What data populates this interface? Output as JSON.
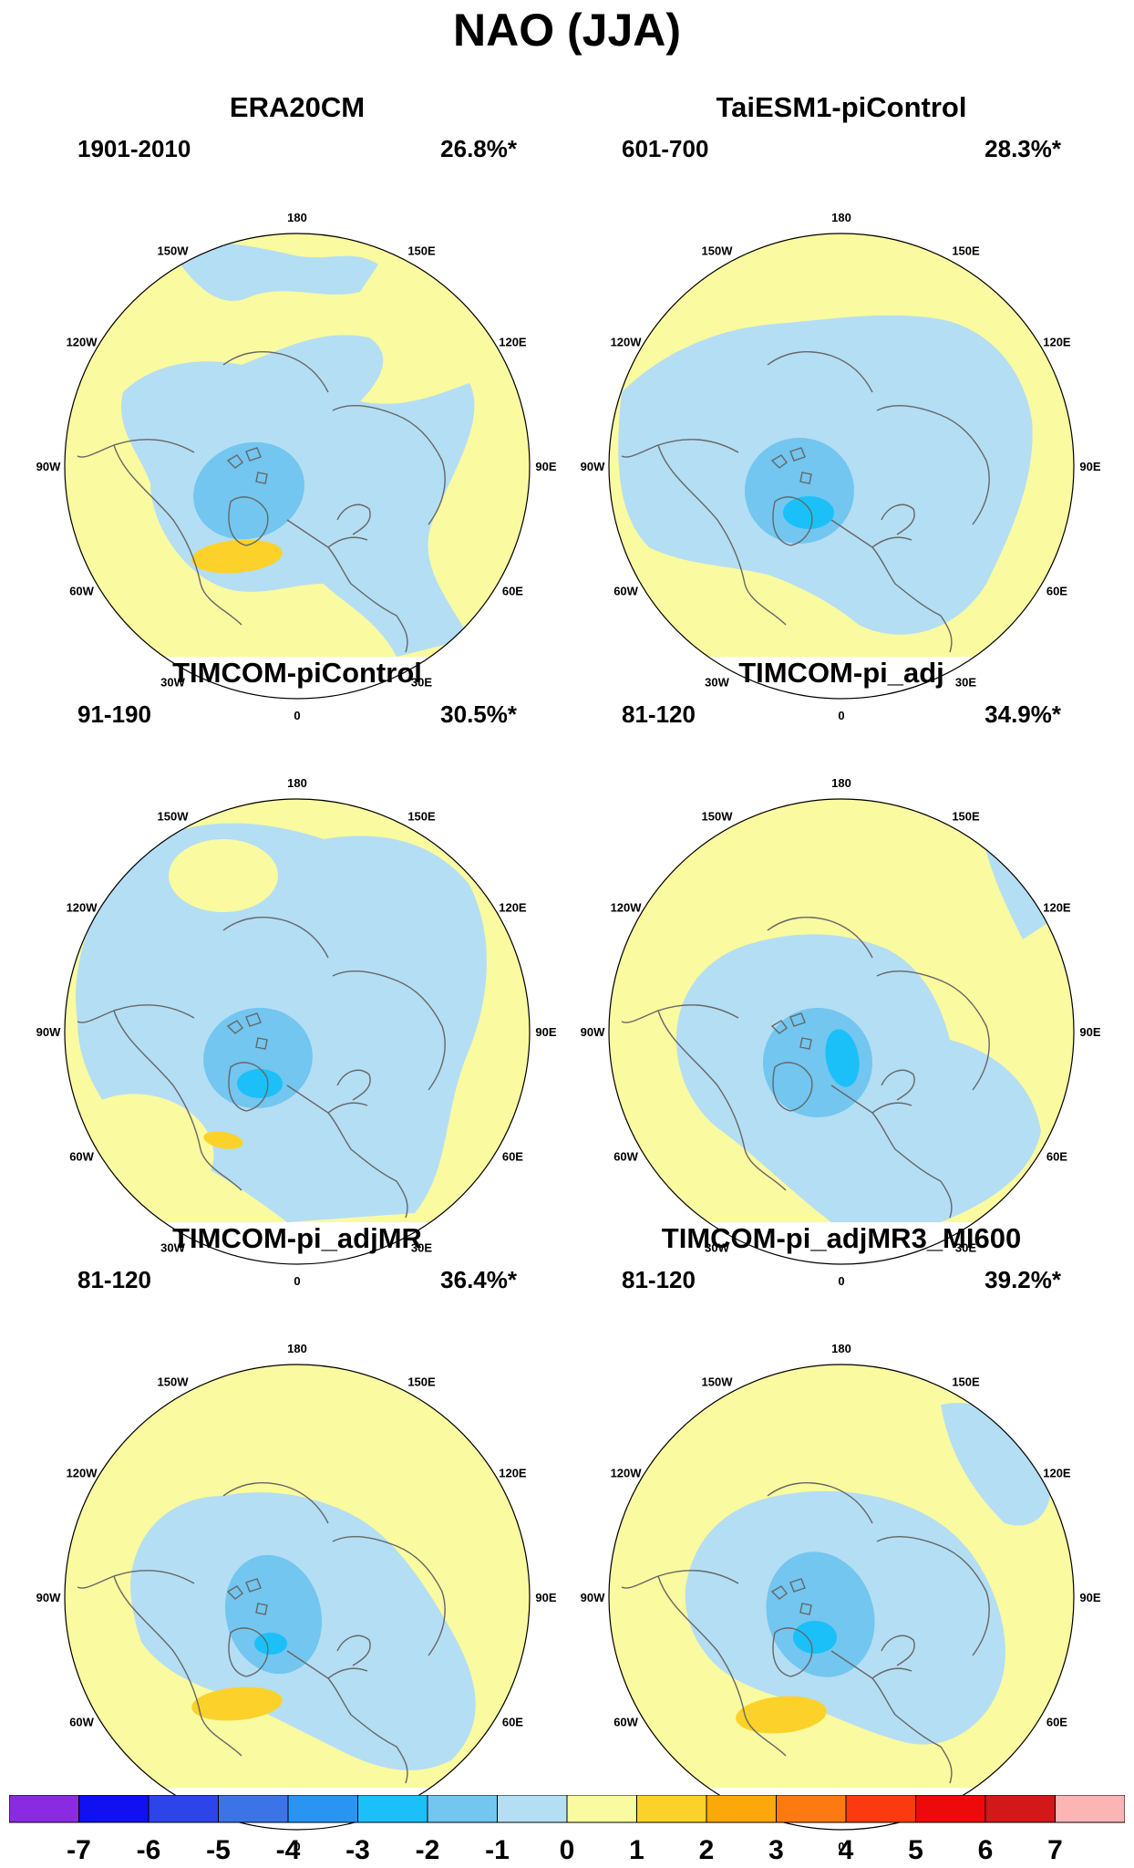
{
  "title": "NAO (JJA)",
  "longitude_labels": [
    "180",
    "150E",
    "120E",
    "90E",
    "60E",
    "30E",
    "0",
    "30W",
    "60W",
    "90W",
    "120W",
    "150W"
  ],
  "panels": [
    {
      "title": "ERA20CM",
      "period": "1901-2010",
      "variance": "26.8%*"
    },
    {
      "title": "TaiESM1-piControl",
      "period": "601-700",
      "variance": "28.3%*"
    },
    {
      "title": "TIMCOM-piControl",
      "period": "91-190",
      "variance": "30.5%*"
    },
    {
      "title": "TIMCOM-pi_adj",
      "period": "81-120",
      "variance": "34.9%*"
    },
    {
      "title": "TIMCOM-pi_adjMR",
      "period": "81-120",
      "variance": "36.4%*"
    },
    {
      "title": "TIMCOM-pi_adjMR3_MI600",
      "period": "81-120",
      "variance": "39.2%*"
    }
  ],
  "colorbar": {
    "labels": [
      "-7",
      "-6",
      "-5",
      "-4",
      "-3",
      "-2",
      "-1",
      "0",
      "1",
      "2",
      "3",
      "4",
      "5",
      "6",
      "7"
    ],
    "colors": [
      "#8a2be2",
      "#1010f0",
      "#2d44e8",
      "#3c74e8",
      "#2a94f2",
      "#1cc0f8",
      "#72c6f0",
      "#b4def4",
      "#fafaa0",
      "#fcd22a",
      "#fca80a",
      "#fc7a10",
      "#fc3a10",
      "#ec0a0a",
      "#d21818",
      "#fcb4b4"
    ]
  },
  "colors": {
    "neg1": "#b4def4",
    "neg2": "#72c6f0",
    "neg3": "#1cc0f8",
    "pos1": "#fafaa0",
    "pos2": "#fcd22a",
    "pos3": "#fca80a",
    "coast": "#666666"
  }
}
